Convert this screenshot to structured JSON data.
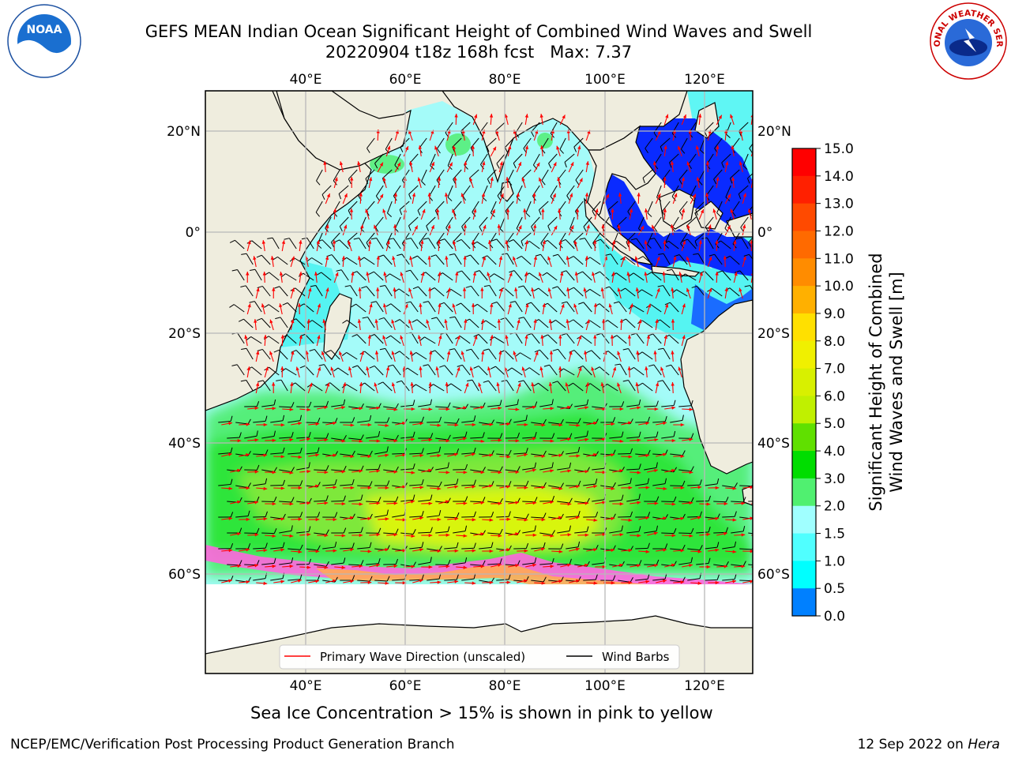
{
  "title": {
    "line1": "GEFS MEAN Indian Ocean Significant Height of Combined Wind Waves and Swell",
    "line2": "20220904 t18z 168h fcst   Max: 7.37"
  },
  "map": {
    "lon_ticks": [
      "40°E",
      "60°E",
      "80°E",
      "100°E",
      "120°E"
    ],
    "lat_ticks_left": [
      "20°N",
      "0°",
      "20°S",
      "40°S",
      "60°S"
    ],
    "lat_ticks_right": [
      "20°N",
      "0°",
      "20°S",
      "40°S",
      "60°S"
    ],
    "legend": {
      "wave_label": "Primary Wave Direction (unscaled)",
      "barb_label": "Wind Barbs",
      "wave_color": "#ff0000",
      "barb_color": "#000000"
    },
    "colors": {
      "land": "#efedde",
      "ice": "#ffffff",
      "arrow": "#ff0000",
      "barb": "#000000"
    }
  },
  "colorbar": {
    "label_line1": "Significant Height of Combined",
    "label_line2": "Wind Waves and Swell [m]",
    "ticks": [
      "15.0",
      "14.0",
      "13.0",
      "12.0",
      "11.0",
      "10.0",
      "9.0",
      "8.0",
      "7.0",
      "6.0",
      "5.0",
      "4.0",
      "3.0",
      "2.0",
      "1.5",
      "1.0",
      "0.5",
      "0.0"
    ],
    "colors": [
      "#ff0000",
      "#ff2000",
      "#ff4a00",
      "#ff6a00",
      "#ff8c00",
      "#ffb000",
      "#ffe000",
      "#f0f000",
      "#d8f000",
      "#c0f000",
      "#60e000",
      "#00dd00",
      "#50f070",
      "#a0ffff",
      "#50ffff",
      "#00ffff",
      "#0080ff",
      "#0000ff"
    ]
  },
  "caption": "Sea Ice Concentration > 15% is shown in pink to yellow",
  "footer": {
    "left": "NCEP/EMC/Verification Post Processing Product Generation Branch",
    "right_prefix": "12 Sep 2022 on ",
    "right_machine": "Hera"
  },
  "logos": {
    "noaa_text": "NOAA",
    "nws_text": "NATIONAL WEATHER SERVICE"
  }
}
